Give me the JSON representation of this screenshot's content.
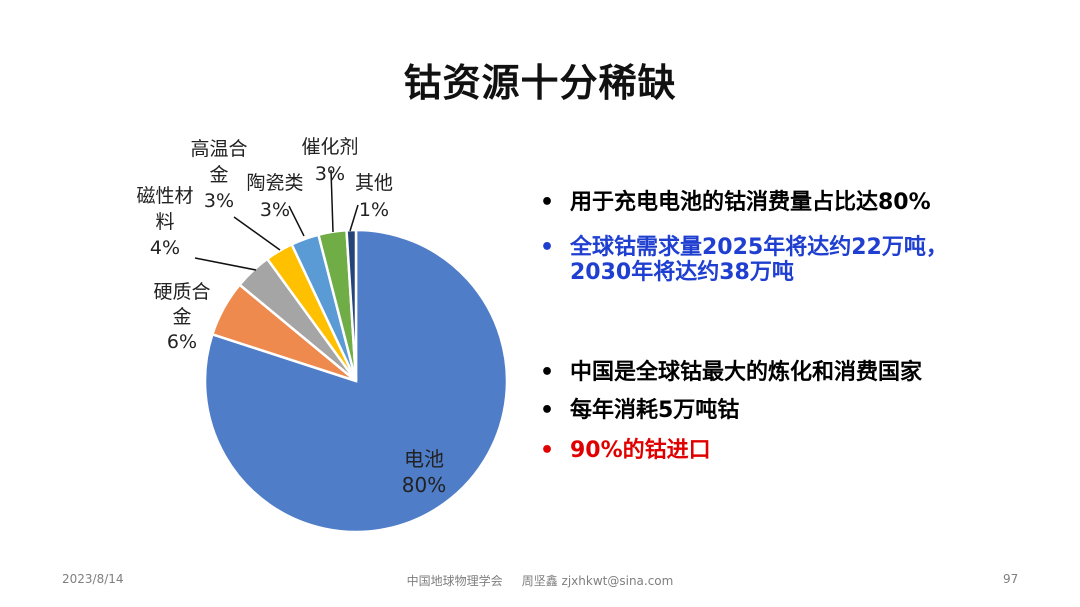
{
  "slide": {
    "title": "钴资源十分稀缺"
  },
  "chart_data": {
    "type": "pie",
    "slices": [
      {
        "label": "电池",
        "value": 80,
        "value_label": "80%",
        "color": "#4F7DC8"
      },
      {
        "label": "硬质合金",
        "value": 6,
        "value_label": "6%",
        "color": "#EE8A4E"
      },
      {
        "label": "磁性材料",
        "value": 4,
        "value_label": "4%",
        "color": "#A5A5A5"
      },
      {
        "label": "高温合金",
        "value": 3,
        "value_label": "3%",
        "color": "#FFC000"
      },
      {
        "label": "陶瓷类",
        "value": 3,
        "value_label": "3%",
        "color": "#5B9BD5"
      },
      {
        "label": "催化剂",
        "value": 3,
        "value_label": "3%",
        "color": "#70AD47"
      },
      {
        "label": "其他",
        "value": 1,
        "value_label": "1%",
        "color": "#264478"
      }
    ],
    "label_lines": {
      "电池": [
        "电池",
        "80%"
      ],
      "硬质合金": [
        "硬质合",
        "金",
        "6%"
      ],
      "磁性材料": [
        "磁性材",
        "料",
        "4%"
      ],
      "高温合金": [
        "高温合",
        "金",
        "3%"
      ],
      "陶瓷类": [
        "陶瓷类",
        "3%"
      ],
      "催化剂": [
        "催化剂",
        "3%"
      ],
      "其他": [
        "其他",
        "1%"
      ]
    }
  },
  "bullets": [
    {
      "text": "用于充电电池的钴消费量占比达80%",
      "color": "#000000"
    },
    {
      "text": "全球钴需求量2025年将达约22万吨，",
      "cont": "2030年将达约38万吨",
      "color": "#1F3FD0"
    },
    {
      "text": "中国是全球钴最大的炼化和消费国家",
      "color": "#000000"
    },
    {
      "text": "每年消耗5万吨钴",
      "color": "#000000"
    },
    {
      "text": "90%的钴进口",
      "color": "#E00000"
    }
  ],
  "footer": {
    "date": "2023/8/14",
    "center": "中国地球物理学会     周坚鑫 zjxhkwt@sina.com",
    "page": "97"
  }
}
